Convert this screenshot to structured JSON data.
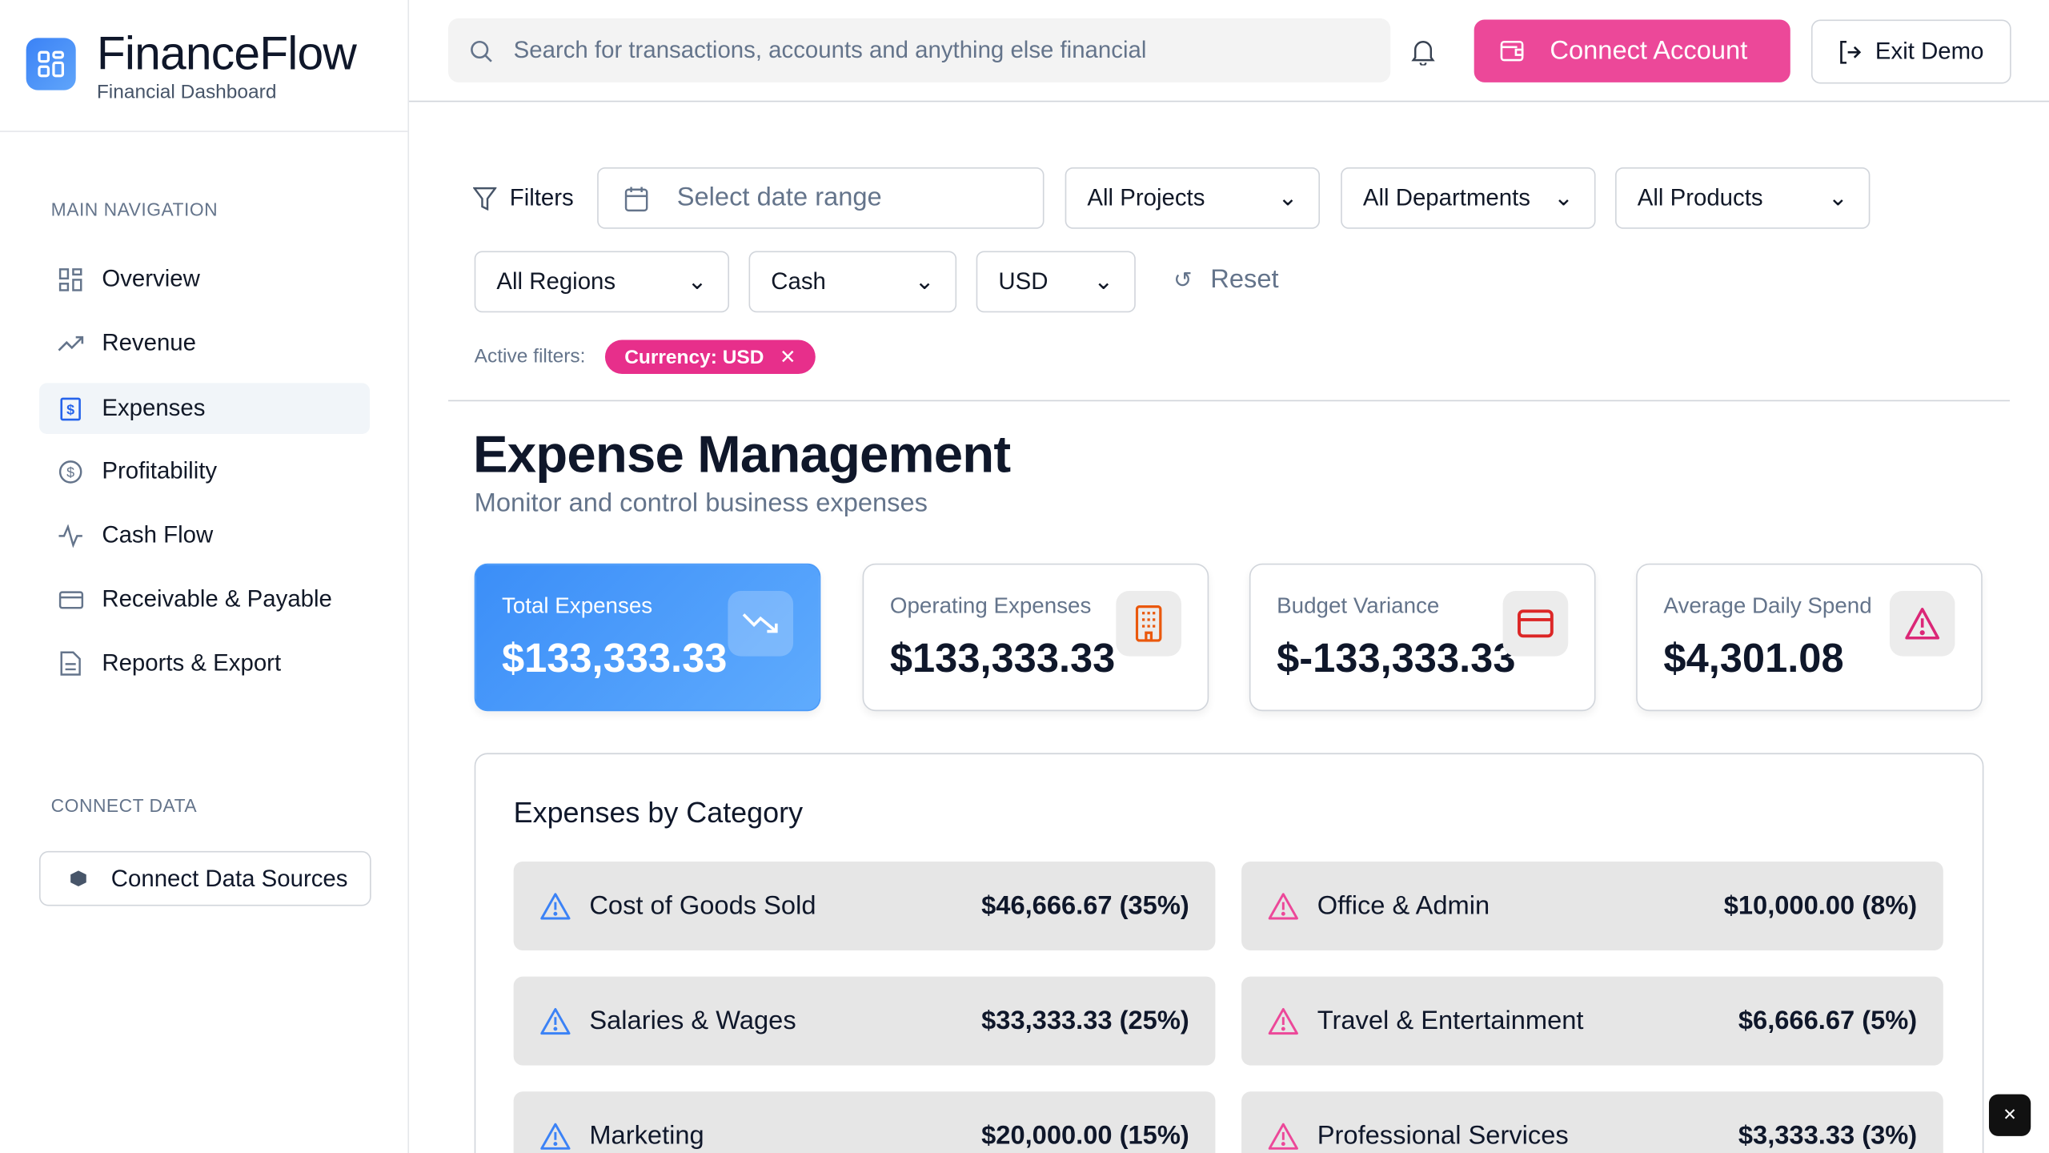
{
  "app": {
    "title": "FinanceFlow",
    "subtitle": "Financial Dashboard",
    "accent": "#ec4899",
    "primary": "#3b82f6"
  },
  "sidebar": {
    "main_nav_title": "MAIN NAVIGATION",
    "items": [
      {
        "label": "Overview",
        "icon": "grid-icon"
      },
      {
        "label": "Revenue",
        "icon": "trending-up-icon"
      },
      {
        "label": "Expenses",
        "icon": "dollar-receipt-icon",
        "active": true
      },
      {
        "label": "Profitability",
        "icon": "dollar-circle-icon"
      },
      {
        "label": "Cash Flow",
        "icon": "activity-icon"
      },
      {
        "label": "Receivable & Payable",
        "icon": "credit-card-icon"
      },
      {
        "label": "Reports & Export",
        "icon": "file-text-icon"
      }
    ],
    "connect_title": "CONNECT DATA",
    "connect_button": "Connect Data Sources"
  },
  "header": {
    "search_placeholder": "Search for transactions, accounts and anything else financial",
    "connect_account": "Connect Account",
    "exit_demo": "Exit Demo"
  },
  "filters": {
    "label": "Filters",
    "date_placeholder": "Select date range",
    "projects": "All Projects",
    "departments": "All Departments",
    "products": "All Products",
    "regions": "All Regions",
    "cash": "Cash",
    "currency": "USD",
    "reset": "Reset",
    "active_label": "Active filters:",
    "active_chip": "Currency: USD"
  },
  "page": {
    "title": "Expense Management",
    "subtitle": "Monitor and control business expenses"
  },
  "cards": [
    {
      "label": "Total Expenses",
      "value": "$133,333.33",
      "icon": "trending-down-icon"
    },
    {
      "label": "Operating Expenses",
      "value": "$133,333.33",
      "icon": "building-icon"
    },
    {
      "label": "Budget Variance",
      "value": "$-133,333.33",
      "icon": "credit-card-icon"
    },
    {
      "label": "Average Daily Spend",
      "value": "$4,301.08",
      "icon": "alert-triangle-icon"
    }
  ],
  "categories": {
    "title": "Expenses by Category",
    "items": [
      {
        "name": "Cost of Goods Sold",
        "amount": "$46,666.67 (35%)",
        "color": "#3b82f6"
      },
      {
        "name": "Office & Admin",
        "amount": "$10,000.00 (8%)",
        "color": "#ec4899"
      },
      {
        "name": "Salaries & Wages",
        "amount": "$33,333.33 (25%)",
        "color": "#3b82f6"
      },
      {
        "name": "Travel & Entertainment",
        "amount": "$6,666.67 (5%)",
        "color": "#ec4899"
      },
      {
        "name": "Marketing",
        "amount": "$20,000.00 (15%)",
        "color": "#3b82f6"
      },
      {
        "name": "Professional Services",
        "amount": "$3,333.33 (3%)",
        "color": "#ec4899"
      }
    ]
  }
}
